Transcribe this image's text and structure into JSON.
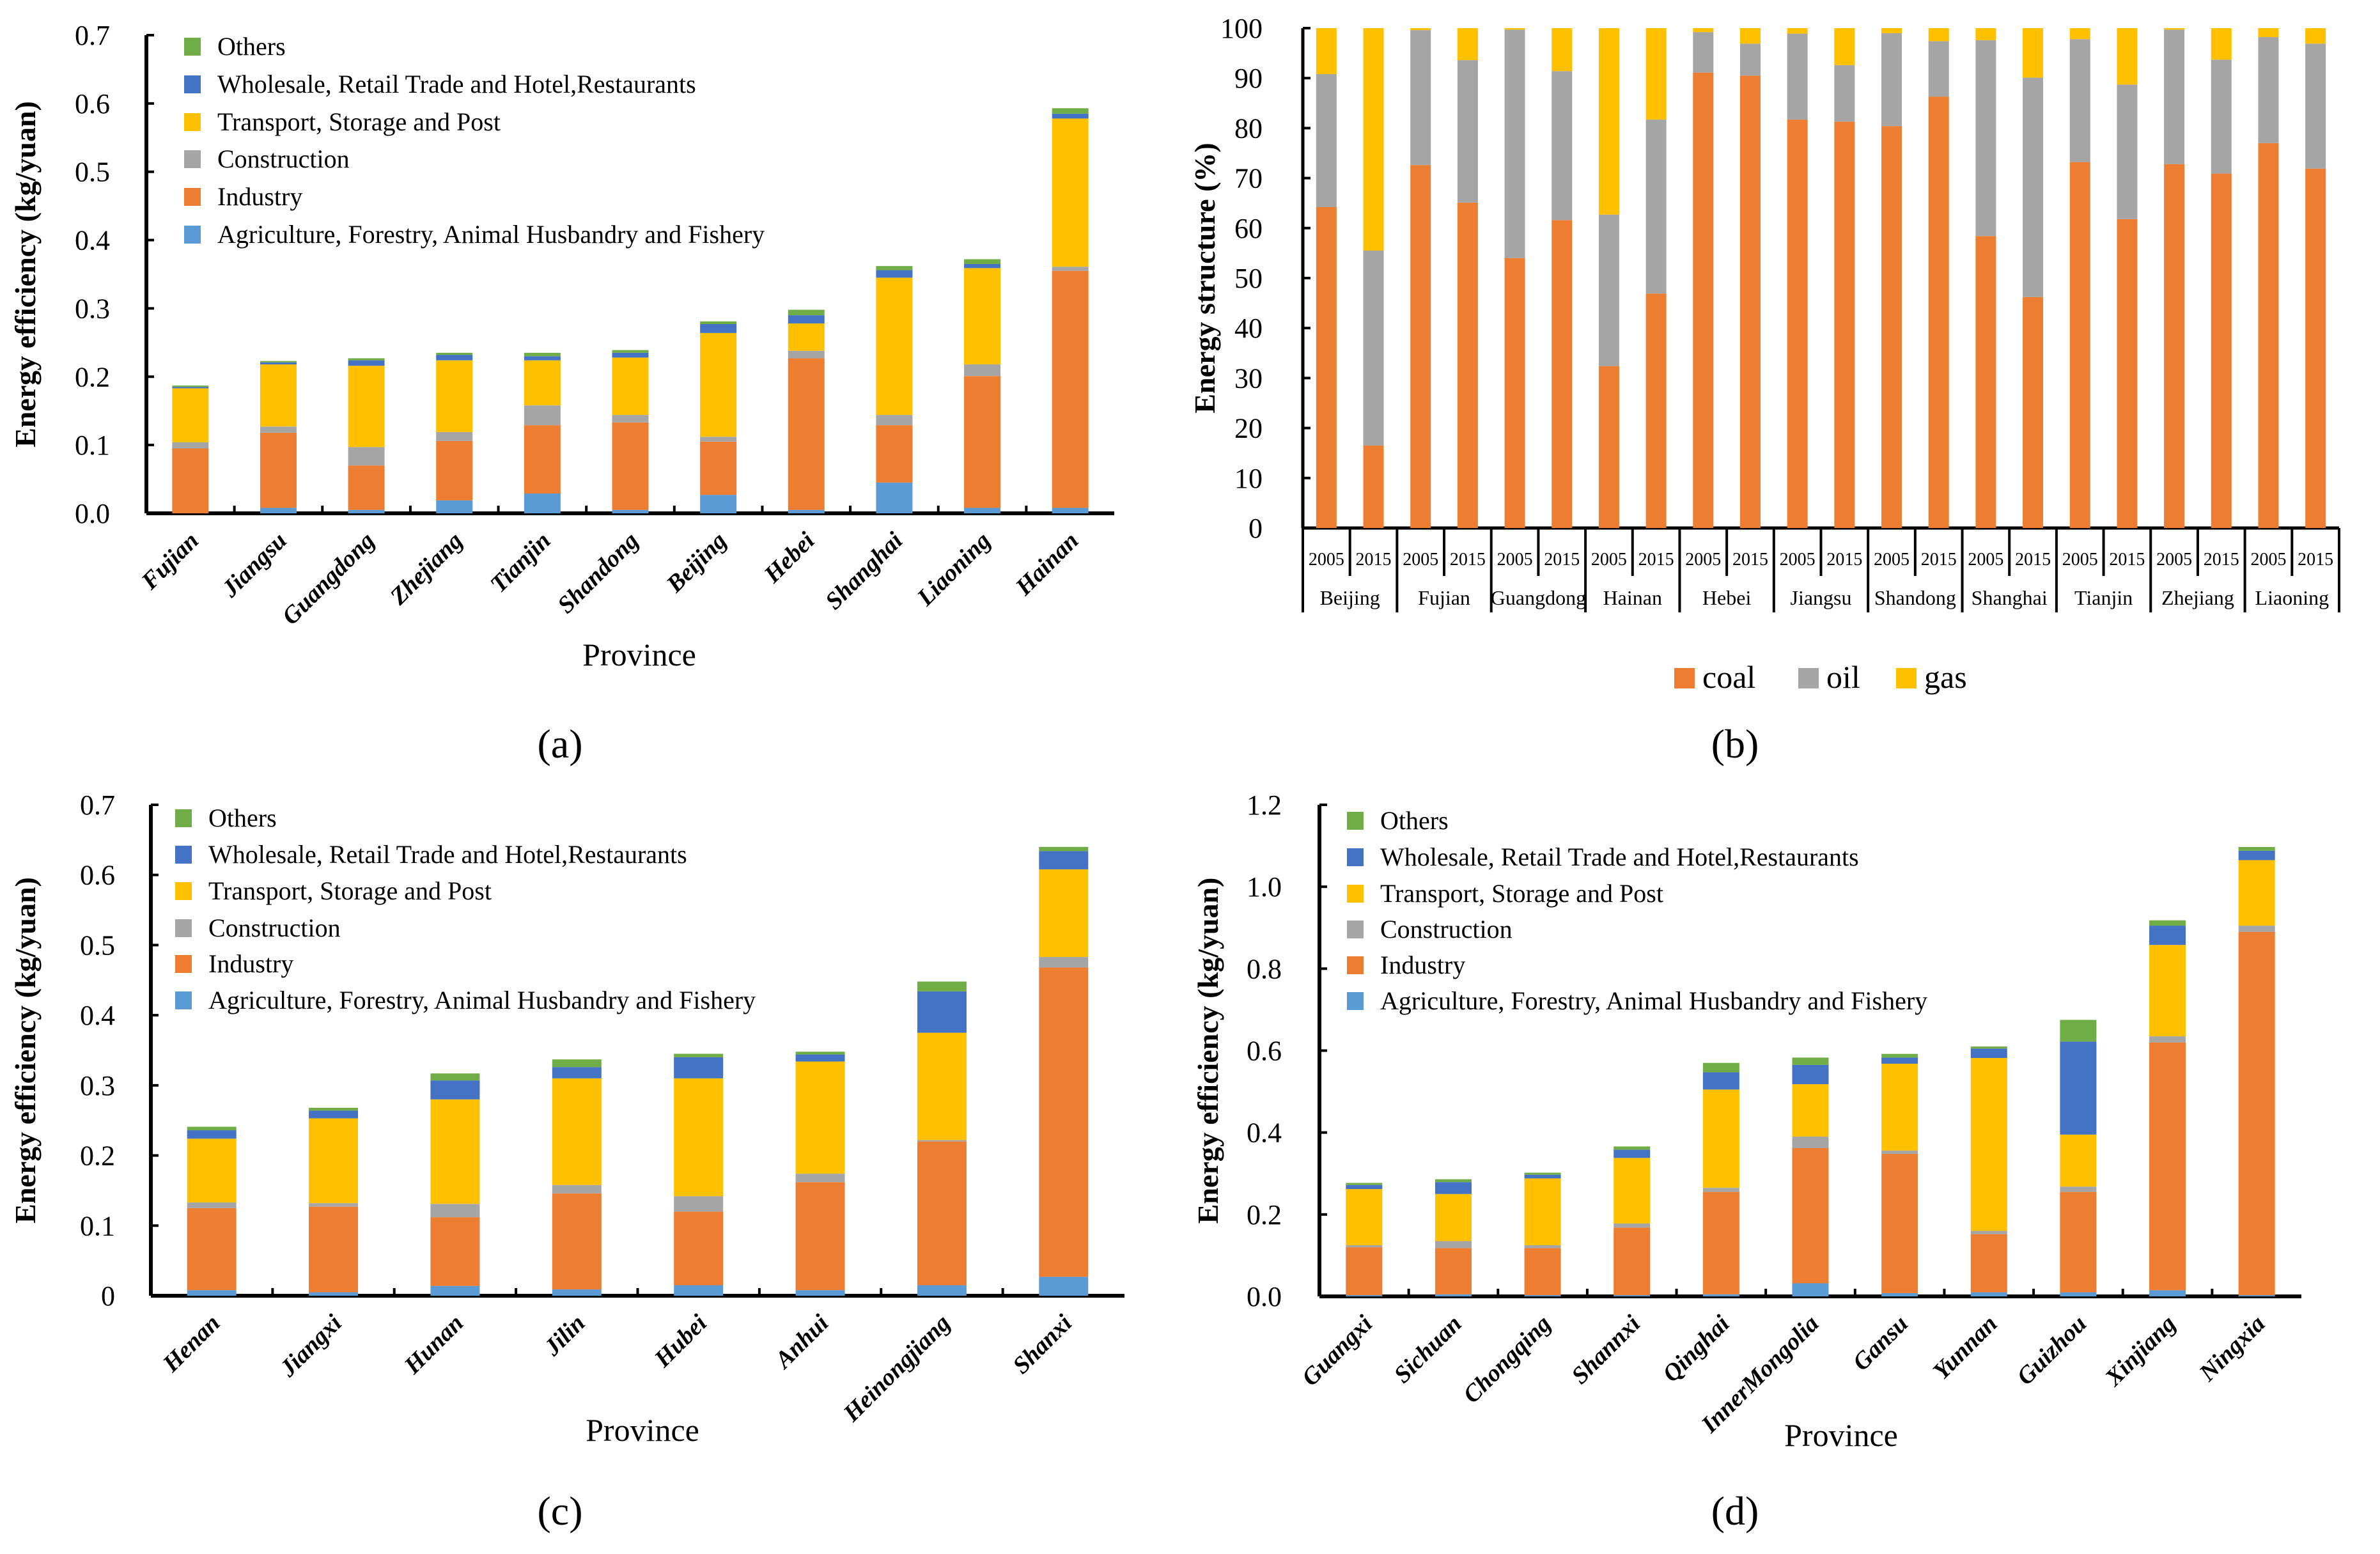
{
  "colors": {
    "agriculture": "#5B9BD5",
    "industry": "#ED7D31",
    "construction": "#A5A5A5",
    "transport": "#FFC000",
    "wholesale": "#4472C4",
    "others": "#70AD47",
    "coal": "#ED7D31",
    "oil": "#A5A5A5",
    "gas": "#FFC000"
  },
  "chart_data": [
    {
      "id": "a",
      "type": "bar",
      "stacked": true,
      "panel_label": "(a)",
      "xlabel": "Province",
      "ylabel": "Energy efficiency (kg/yuan)",
      "ylim": [
        0,
        0.7
      ],
      "yticks": [
        "0.0",
        "0.1",
        "0.2",
        "0.3",
        "0.4",
        "0.5",
        "0.6",
        "0.7"
      ],
      "legend_position": "top-left",
      "categories": [
        "Fujian",
        "Jiangsu",
        "Guangdong",
        "Zhejiang",
        "Tianjin",
        "Shandong",
        "Beijing",
        "Hebei",
        "Shanghai",
        "Liaoning",
        "Hainan"
      ],
      "series": [
        {
          "name": "Agriculture, Forestry, Animal Husbandry and Fishery",
          "key": "agriculture",
          "values": [
            0,
            0.008,
            0.005,
            0.019,
            0.029,
            0.005,
            0.027,
            0.005,
            0.045,
            0.008,
            0.008
          ]
        },
        {
          "name": "Industry",
          "key": "industry",
          "values": [
            0.095,
            0.11,
            0.065,
            0.087,
            0.1,
            0.128,
            0.078,
            0.222,
            0.084,
            0.193,
            0.347
          ]
        },
        {
          "name": "Construction",
          "key": "construction",
          "values": [
            0.009,
            0.009,
            0.027,
            0.013,
            0.029,
            0.011,
            0.007,
            0.011,
            0.015,
            0.017,
            0.006
          ]
        },
        {
          "name": "Transport, Storage and Post",
          "key": "transport",
          "values": [
            0.079,
            0.091,
            0.119,
            0.105,
            0.066,
            0.084,
            0.152,
            0.04,
            0.201,
            0.141,
            0.217
          ]
        },
        {
          "name": "Wholesale, Retail Trade and Hotel,Restaurants",
          "key": "wholesale",
          "values": [
            0.002,
            0.003,
            0.008,
            0.008,
            0.006,
            0.007,
            0.013,
            0.012,
            0.011,
            0.006,
            0.007
          ]
        },
        {
          "name": "Others",
          "key": "others",
          "values": [
            0.002,
            0.002,
            0.003,
            0.003,
            0.005,
            0.004,
            0.004,
            0.008,
            0.006,
            0.007,
            0.008
          ]
        }
      ]
    },
    {
      "id": "b",
      "type": "bar",
      "stacked": true,
      "panel_label": "(b)",
      "xlabel": "",
      "ylabel": "Energy structure (%)",
      "ylim": [
        0,
        100
      ],
      "yticks": [
        "0",
        "10",
        "20",
        "30",
        "40",
        "50",
        "60",
        "70",
        "80",
        "90",
        "100"
      ],
      "legend_position": "bottom",
      "categories": [
        "Beijing",
        "Fujian",
        "Guangdong",
        "Hainan",
        "Hebei",
        "Jiangsu",
        "Shandong",
        "Shanghai",
        "Tianjin",
        "Zhejiang",
        "Liaoning"
      ],
      "years": [
        "2005",
        "2015"
      ],
      "series": [
        {
          "name": "coal",
          "key": "coal",
          "values": [
            [
              64.2,
              16.5
            ],
            [
              72.6,
              65.1
            ],
            [
              54.0,
              61.6
            ],
            [
              32.4,
              46.9
            ],
            [
              91.1,
              90.5
            ],
            [
              81.7,
              81.3
            ],
            [
              80.4,
              86.3
            ],
            [
              58.4,
              46.2
            ],
            [
              73.2,
              61.8
            ],
            [
              72.8,
              70.9
            ],
            [
              77.0,
              71.9
            ]
          ]
        },
        {
          "name": "oil",
          "key": "oil",
          "values": [
            [
              26.6,
              39.0
            ],
            [
              27.0,
              28.5
            ],
            [
              45.7,
              29.8
            ],
            [
              30.3,
              34.8
            ],
            [
              8.1,
              6.4
            ],
            [
              17.2,
              11.3
            ],
            [
              18.6,
              11.1
            ],
            [
              39.2,
              43.9
            ],
            [
              24.6,
              26.9
            ],
            [
              26.9,
              22.8
            ],
            [
              21.2,
              25.0
            ]
          ]
        },
        {
          "name": "gas",
          "key": "gas",
          "values": [
            [
              9.2,
              44.5
            ],
            [
              0.4,
              6.4
            ],
            [
              0.3,
              8.6
            ],
            [
              37.3,
              18.3
            ],
            [
              0.8,
              3.1
            ],
            [
              1.1,
              7.4
            ],
            [
              1.0,
              2.6
            ],
            [
              2.4,
              9.9
            ],
            [
              2.2,
              11.3
            ],
            [
              0.3,
              6.3
            ],
            [
              1.8,
              3.1
            ]
          ]
        }
      ]
    },
    {
      "id": "c",
      "type": "bar",
      "stacked": true,
      "panel_label": "(c)",
      "xlabel": "Province",
      "ylabel": "Energy efficiency (kg/yuan)",
      "ylim": [
        0,
        0.7
      ],
      "yticks": [
        "0",
        "0.1",
        "0.2",
        "0.3",
        "0.4",
        "0.5",
        "0.6",
        "0.7"
      ],
      "legend_position": "top-left",
      "categories": [
        "Henan",
        "Jiangxi",
        "Hunan",
        "Jilin",
        "Hubei",
        "Anhui",
        "Heinongjiang",
        "Shanxi"
      ],
      "series": [
        {
          "name": "Agriculture, Forestry, Animal Husbandry and Fishery",
          "key": "agriculture",
          "values": [
            0.008,
            0.005,
            0.014,
            0.009,
            0.015,
            0.008,
            0.015,
            0.027
          ]
        },
        {
          "name": "Industry",
          "key": "industry",
          "values": [
            0.117,
            0.122,
            0.098,
            0.137,
            0.105,
            0.154,
            0.205,
            0.441
          ]
        },
        {
          "name": "Construction",
          "key": "construction",
          "values": [
            0.008,
            0.005,
            0.019,
            0.012,
            0.022,
            0.012,
            0.002,
            0.015
          ]
        },
        {
          "name": "Transport, Storage and Post",
          "key": "transport",
          "values": [
            0.091,
            0.121,
            0.149,
            0.152,
            0.168,
            0.16,
            0.153,
            0.125
          ]
        },
        {
          "name": "Wholesale, Retail Trade and Hotel,Restaurants",
          "key": "wholesale",
          "values": [
            0.012,
            0.011,
            0.027,
            0.016,
            0.03,
            0.01,
            0.059,
            0.026
          ]
        },
        {
          "name": "Others",
          "key": "others",
          "values": [
            0.005,
            0.004,
            0.01,
            0.011,
            0.005,
            0.004,
            0.014,
            0.006
          ]
        }
      ]
    },
    {
      "id": "d",
      "type": "bar",
      "stacked": true,
      "panel_label": "(d)",
      "xlabel": "Province",
      "ylabel": "Energy efficiency (kg/yuan)",
      "ylim": [
        0,
        1.2
      ],
      "yticks": [
        "0.0",
        "0.2",
        "0.4",
        "0.6",
        "0.8",
        "1.0",
        "1.2"
      ],
      "legend_position": "top-left",
      "categories": [
        "Guangxi",
        "Sichuan",
        "Chongqing",
        "Shannxi",
        "Qinghai",
        "InnerMongolia",
        "Gansu",
        "Yunnan",
        "Guizhou",
        "Xinjiang",
        "Ningxia"
      ],
      "series": [
        {
          "name": "Agriculture, Forestry, Animal Husbandry and Fishery",
          "key": "agriculture",
          "values": [
            0.003,
            0.005,
            0.003,
            0.003,
            0.005,
            0.032,
            0.008,
            0.01,
            0.01,
            0.015,
            0.003
          ]
        },
        {
          "name": "Industry",
          "key": "industry",
          "values": [
            0.117,
            0.113,
            0.115,
            0.165,
            0.25,
            0.33,
            0.34,
            0.142,
            0.245,
            0.605,
            0.887
          ]
        },
        {
          "name": "Construction",
          "key": "construction",
          "values": [
            0.005,
            0.017,
            0.007,
            0.01,
            0.01,
            0.028,
            0.008,
            0.008,
            0.013,
            0.015,
            0.015
          ]
        },
        {
          "name": "Transport, Storage and Post",
          "key": "transport",
          "values": [
            0.137,
            0.115,
            0.163,
            0.16,
            0.24,
            0.128,
            0.212,
            0.422,
            0.127,
            0.223,
            0.16
          ]
        },
        {
          "name": "Wholesale, Retail Trade and Hotel,Restaurants",
          "key": "wholesale",
          "values": [
            0.01,
            0.029,
            0.009,
            0.02,
            0.042,
            0.047,
            0.015,
            0.023,
            0.227,
            0.047,
            0.023
          ]
        },
        {
          "name": "Others",
          "key": "others",
          "values": [
            0.005,
            0.007,
            0.005,
            0.008,
            0.023,
            0.018,
            0.009,
            0.005,
            0.053,
            0.013,
            0.009
          ]
        }
      ]
    }
  ]
}
